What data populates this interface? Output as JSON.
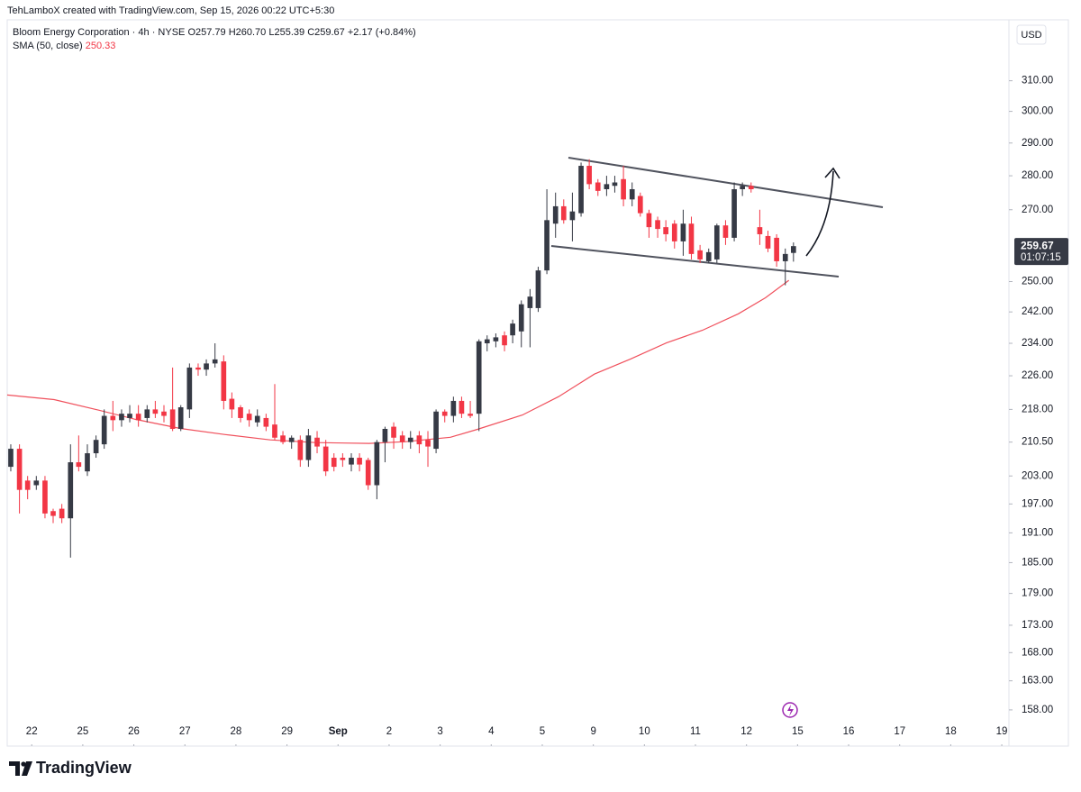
{
  "chart_data": {
    "type": "candlestick",
    "watermark": "TehLamboX created with TradingView.com, Sep 15, 2026 00:22 UTC+5:30",
    "title": "Bloom Energy Corporation · 4h · NYSE",
    "ohlc_header": [
      "O257.79",
      "H260.70",
      "L255.39",
      "C259.67",
      "+2.17 (+0.84%)"
    ],
    "currency": "USD",
    "countdown": "01:07:15",
    "brand": "TradingView",
    "log_scale": true,
    "grid": false,
    "up_color": "#363a45",
    "down_color": "#f23645",
    "xlim": [
      -0.48,
      19.14
    ],
    "ylim": [
      152,
      329
    ],
    "xticks": [
      {
        "value": 0,
        "label": "22"
      },
      {
        "value": 1,
        "label": "25"
      },
      {
        "value": 2,
        "label": "26"
      },
      {
        "value": 3,
        "label": "27"
      },
      {
        "value": 4,
        "label": "28"
      },
      {
        "value": 5,
        "label": "29"
      },
      {
        "value": 6,
        "label": "Sep"
      },
      {
        "value": 7,
        "label": "2"
      },
      {
        "value": 8,
        "label": "3"
      },
      {
        "value": 9,
        "label": "4"
      },
      {
        "value": 10,
        "label": "5"
      },
      {
        "value": 11,
        "label": "9"
      },
      {
        "value": 12,
        "label": "10"
      },
      {
        "value": 13,
        "label": "11"
      },
      {
        "value": 14,
        "label": "12"
      },
      {
        "value": 15,
        "label": "15"
      },
      {
        "value": 16,
        "label": "16"
      },
      {
        "value": 17,
        "label": "17"
      },
      {
        "value": 18,
        "label": "18"
      },
      {
        "value": 19,
        "label": "19"
      }
    ],
    "yticks": [
      {
        "value": 158,
        "label": "158.00"
      },
      {
        "value": 163,
        "label": "163.00"
      },
      {
        "value": 168,
        "label": "168.00"
      },
      {
        "value": 173,
        "label": "173.00"
      },
      {
        "value": 179,
        "label": "179.00"
      },
      {
        "value": 185,
        "label": "185.00"
      },
      {
        "value": 191,
        "label": "191.00"
      },
      {
        "value": 197,
        "label": "197.00"
      },
      {
        "value": 203,
        "label": "203.00"
      },
      {
        "value": 210.5,
        "label": "210.50"
      },
      {
        "value": 218,
        "label": "218.00"
      },
      {
        "value": 226,
        "label": "226.00"
      },
      {
        "value": 234,
        "label": "234.00"
      },
      {
        "value": 242,
        "label": "242.00"
      },
      {
        "value": 250,
        "label": "250.00"
      },
      {
        "value": 270,
        "label": "270.00"
      },
      {
        "value": 280,
        "label": "280.00"
      },
      {
        "value": 290,
        "label": "290.00"
      },
      {
        "value": 300,
        "label": "300.00"
      },
      {
        "value": 310,
        "label": "310.00"
      }
    ],
    "candles": {
      "x": [
        -0.41,
        -0.24,
        -0.08,
        0.09,
        0.26,
        0.42,
        0.59,
        0.76,
        0.92,
        1.09,
        1.26,
        1.42,
        1.59,
        1.76,
        1.92,
        2.09,
        2.26,
        2.42,
        2.59,
        2.76,
        2.92,
        3.09,
        3.26,
        3.42,
        3.59,
        3.76,
        3.92,
        4.09,
        4.26,
        4.42,
        4.59,
        4.76,
        4.92,
        5.09,
        5.26,
        5.42,
        5.59,
        5.76,
        5.92,
        6.09,
        6.26,
        6.42,
        6.59,
        6.76,
        6.92,
        7.09,
        7.26,
        7.42,
        7.59,
        7.76,
        7.92,
        8.09,
        8.26,
        8.42,
        8.59,
        8.76,
        8.92,
        9.09,
        9.26,
        9.42,
        9.59,
        9.76,
        9.92,
        10.09,
        10.26,
        10.42,
        10.59,
        10.76,
        10.92,
        11.09,
        11.26,
        11.42,
        11.59,
        11.76,
        11.92,
        12.09,
        12.26,
        12.42,
        12.59,
        12.76,
        12.92,
        13.09,
        13.26,
        13.42,
        13.59,
        13.76,
        13.92,
        14.09,
        14.26,
        14.42,
        14.59,
        14.76,
        14.92
      ],
      "open": [
        205,
        209,
        202,
        201,
        202,
        195.5,
        196,
        194,
        206,
        204,
        208,
        210,
        216.5,
        215.5,
        216,
        217,
        216,
        218,
        217.5,
        218,
        213.5,
        218,
        228,
        227.5,
        229,
        229.5,
        220.5,
        218.5,
        217,
        215,
        216,
        214.5,
        212,
        210.5,
        211,
        206.5,
        211.5,
        209.5,
        207,
        207,
        205.5,
        207,
        206.5,
        201,
        210.5,
        214,
        212,
        210.5,
        212,
        211,
        209,
        217.5,
        216.5,
        220,
        217,
        217,
        234,
        234.5,
        236,
        236,
        237,
        243,
        243,
        253,
        266,
        271,
        267,
        269,
        283,
        278,
        276,
        277,
        279,
        273,
        274,
        269,
        267,
        265,
        266,
        261,
        266,
        258.5,
        255.5,
        256,
        265.5,
        262,
        276,
        277,
        265,
        262.5,
        262,
        255.5,
        257.79
      ],
      "high": [
        210,
        210,
        203,
        203,
        203,
        196,
        197,
        210,
        212,
        210,
        212,
        218,
        220,
        218,
        219,
        219,
        219,
        220,
        219,
        228,
        219,
        229,
        229,
        230,
        234,
        231,
        222,
        219,
        218,
        218,
        217,
        224,
        213,
        212,
        212,
        213.5,
        213,
        211,
        208,
        208,
        208,
        208,
        207,
        211,
        214,
        215,
        213,
        213,
        213,
        213,
        218,
        218,
        221,
        221,
        220,
        235,
        236,
        236.5,
        237,
        240,
        245,
        248,
        254,
        276,
        275,
        273,
        275,
        284,
        285,
        279,
        280,
        280,
        283,
        278,
        275,
        270,
        268,
        267,
        267,
        270,
        268,
        260,
        259,
        266,
        267,
        278,
        278,
        278,
        270,
        264,
        263,
        259,
        260.7
      ],
      "low": [
        204,
        195,
        198,
        200,
        194,
        193,
        193,
        186,
        204,
        203,
        207,
        209,
        213,
        214,
        215,
        214,
        215,
        216,
        215,
        213,
        213,
        216,
        226,
        226,
        228,
        218,
        216,
        215,
        214,
        214,
        213,
        211,
        210,
        209,
        205,
        205,
        208,
        203,
        204,
        205,
        204,
        204,
        200,
        198,
        206,
        209,
        209,
        209,
        208,
        205,
        208,
        215,
        215,
        216,
        216,
        213,
        232,
        233,
        232,
        234,
        233,
        233,
        242,
        252,
        262,
        266,
        261,
        268,
        276,
        274,
        274,
        275,
        271,
        271,
        268,
        262,
        262,
        261,
        259,
        257,
        256,
        255,
        255,
        255,
        260,
        261,
        274,
        275,
        260,
        258,
        254,
        249,
        255.39
      ],
      "close": [
        209,
        200,
        200,
        202,
        195,
        194.5,
        194,
        206,
        205,
        208,
        211,
        216.5,
        215.5,
        217,
        217,
        215.5,
        218,
        217,
        216.5,
        213.5,
        218.5,
        228,
        227.5,
        229,
        230,
        220,
        218,
        216,
        215.5,
        216.5,
        214,
        211.5,
        210.5,
        211.5,
        206.5,
        212,
        209.5,
        204,
        205,
        206.5,
        207,
        205.5,
        201,
        210.5,
        213.5,
        211.5,
        210.5,
        211.5,
        210,
        209.5,
        217.5,
        216.5,
        220,
        217,
        216.5,
        234.5,
        235,
        235.5,
        233.5,
        239,
        244,
        246,
        253,
        267,
        271,
        267,
        269.5,
        283,
        277.5,
        275.5,
        277.5,
        278,
        273,
        276,
        269,
        265,
        264.5,
        263,
        261,
        266,
        257.5,
        256,
        258,
        265.5,
        262,
        276,
        277,
        276,
        263,
        259,
        255.5,
        257.5,
        259.67
      ]
    },
    "sma": {
      "name": "SMA (50, close)",
      "color": "#f0505c",
      "x": [
        -0.48,
        0.44,
        1.32,
        2.03,
        2.91,
        3.79,
        4.67,
        5.56,
        6.61,
        7.32,
        8.2,
        8.73,
        9.61,
        10.32,
        11.02,
        11.73,
        12.43,
        13.14,
        13.84,
        14.37,
        14.83
      ],
      "values": [
        221.4,
        220.3,
        217.8,
        215.7,
        213.6,
        212.2,
        211,
        210.4,
        210.2,
        210.6,
        211.6,
        213.4,
        216.7,
        221,
        226.4,
        230.1,
        234.1,
        237.3,
        241.5,
        245.7,
        250.33
      ]
    }
  }
}
